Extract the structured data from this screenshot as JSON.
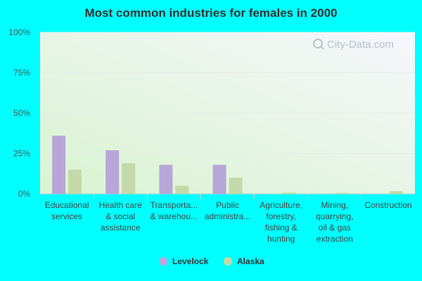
{
  "chart_data": {
    "type": "bar",
    "title": "Most common industries for females in 2000",
    "categories": [
      [
        "Educational",
        "services"
      ],
      [
        "Health care",
        "& social",
        "assistance"
      ],
      [
        "Transporta...",
        "& warehou..."
      ],
      [
        "Public",
        "administra..."
      ],
      [
        "Agriculture,",
        "forestry,",
        "fishing &",
        "hunting"
      ],
      [
        "Mining,",
        "quarrying,",
        "oil & gas",
        "extraction"
      ],
      [
        "Construction"
      ]
    ],
    "series": [
      {
        "name": "Levelock",
        "color": "#b9a6d8",
        "values": [
          36,
          27,
          18,
          18,
          0,
          0,
          0
        ]
      },
      {
        "name": "Alaska",
        "color": "#c5d9a8",
        "values": [
          15,
          19,
          5,
          10,
          0.8,
          0.6,
          1.7
        ]
      }
    ],
    "ylim": [
      0,
      100
    ],
    "yticks": [
      "0%",
      "25%",
      "50%",
      "75%",
      "100%"
    ],
    "legend_position": "bottom",
    "grid": true
  },
  "watermark": "City-Data.com",
  "colors": {
    "page_background": "#00ffff",
    "plot_bg_top": "#f6f7fc",
    "plot_bg_bottom": "#d9f5d2"
  }
}
